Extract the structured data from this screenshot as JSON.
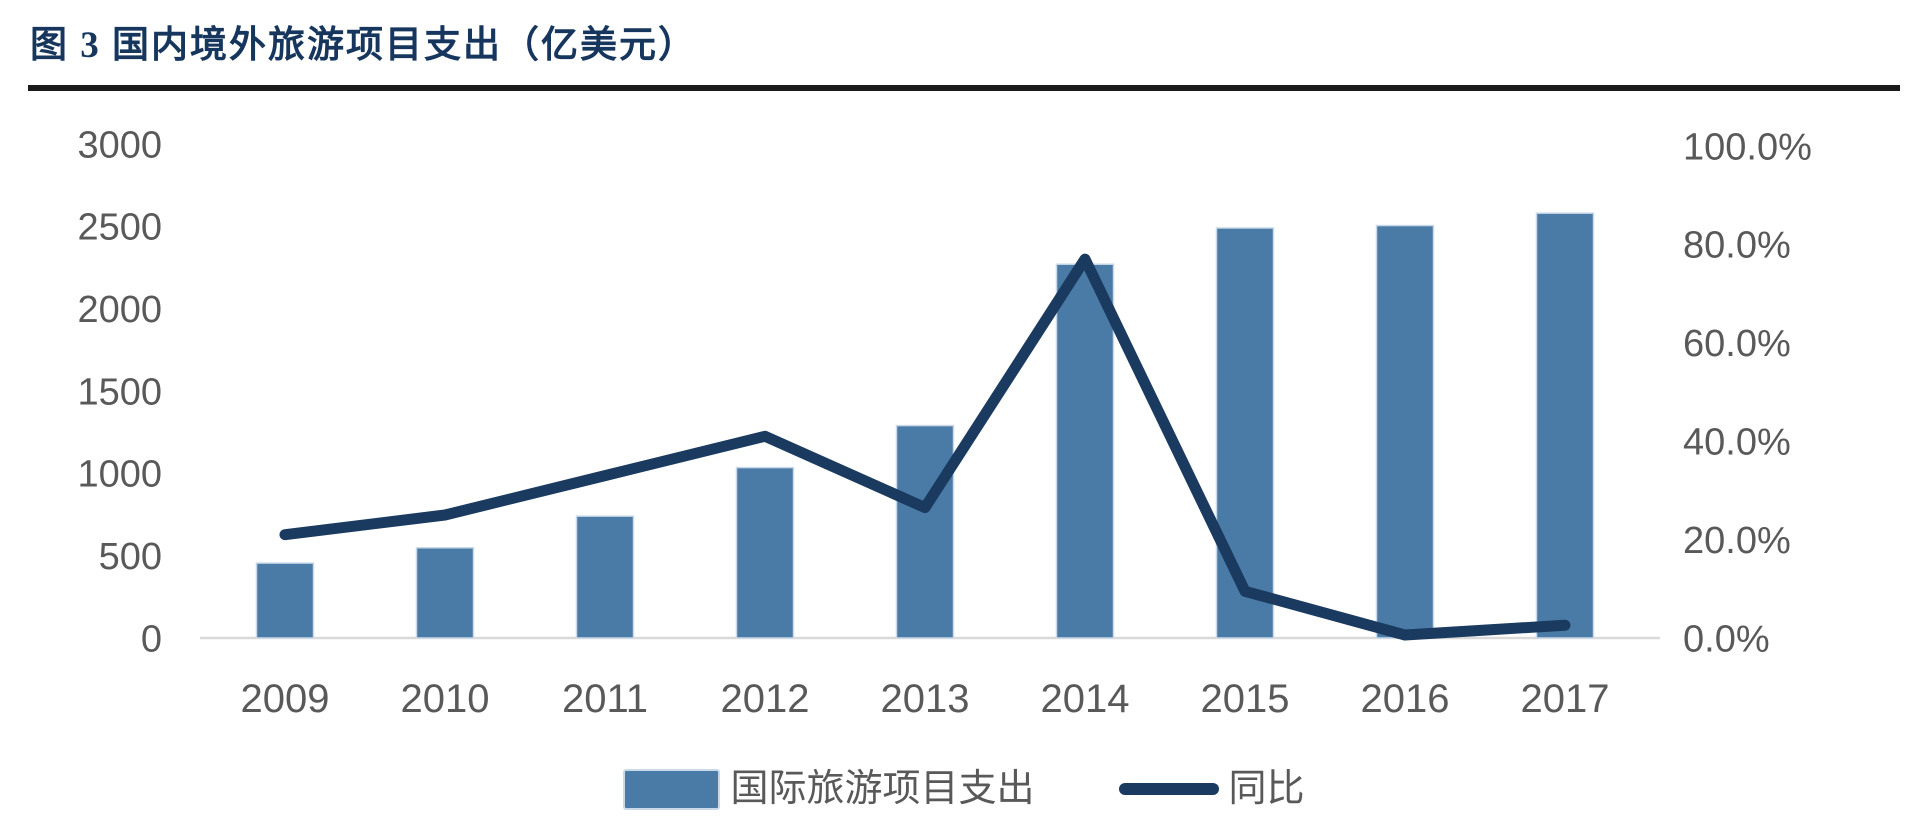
{
  "figure": {
    "title": "图 3  国内境外旅游项目支出（亿美元）",
    "title_color": "#17365d",
    "separator_color": "#1a1a1a"
  },
  "chart_data": {
    "type": "bar",
    "subtype": "bar+line dual axis",
    "title": "国内境外旅游项目支出（亿美元）",
    "categories": [
      "2009",
      "2010",
      "2011",
      "2012",
      "2013",
      "2014",
      "2015",
      "2016",
      "2017"
    ],
    "series": [
      {
        "name": "国际旅游项目支出",
        "type": "bar",
        "axis": "left",
        "values": [
          455,
          548,
          740,
          1035,
          1290,
          2270,
          2490,
          2505,
          2580
        ],
        "color": "#4a7ba6",
        "edge_color": "#c9d9e8"
      },
      {
        "name": "同比",
        "type": "line",
        "axis": "right",
        "values": [
          21,
          25,
          33,
          41,
          26.5,
          77,
          9.5,
          0.6,
          2.6
        ],
        "color": "#1a3a5f"
      }
    ],
    "left_axis": {
      "min": 0,
      "max": 3000,
      "step": 500,
      "tick_labels": [
        "3000",
        "2500",
        "2000",
        "1500",
        "1000",
        "500",
        "0"
      ]
    },
    "right_axis": {
      "min": 0,
      "max": 100,
      "step": 20,
      "tick_labels": [
        "100.0%",
        "80.0%",
        "60.0%",
        "40.0%",
        "20.0%",
        "0.0%"
      ]
    },
    "axis_text_color": "#595959",
    "baseline_color": "#d9d9d9",
    "grid": "off",
    "legend_position": "bottom-center"
  }
}
